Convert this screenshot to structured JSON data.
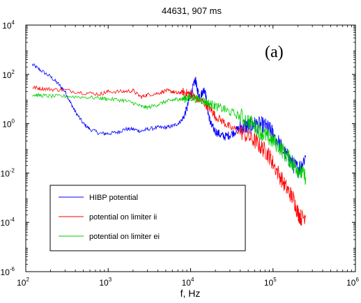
{
  "chart_data": {
    "type": "line",
    "title": "44631, 907 ms",
    "xlabel": "f, Hz",
    "ylabel": "",
    "annotation": "(a)",
    "xscale": "log",
    "yscale": "log",
    "xlim": [
      100,
      1000000
    ],
    "ylim": [
      1e-06,
      10000
    ],
    "x_ticks": [
      {
        "base": "10",
        "exp": "2"
      },
      {
        "base": "10",
        "exp": "3"
      },
      {
        "base": "10",
        "exp": "4"
      },
      {
        "base": "10",
        "exp": "5"
      },
      {
        "base": "10",
        "exp": "6"
      }
    ],
    "y_ticks": [
      {
        "base": "10",
        "exp": "4"
      },
      {
        "base": "10",
        "exp": "2"
      },
      {
        "base": "10",
        "exp": "0"
      },
      {
        "base": "10",
        "exp": "-2"
      },
      {
        "base": "10",
        "exp": "-4"
      },
      {
        "base": "10",
        "exp": "-6"
      }
    ],
    "grid": false,
    "legend_position": "lower-left",
    "series": [
      {
        "name": "HIBP potential",
        "color": "#0000ff",
        "x": [
          120,
          150,
          200,
          250,
          300,
          350,
          400,
          500,
          600,
          800,
          1000,
          1300,
          1600,
          2000,
          2500,
          3000,
          4000,
          5000,
          6000,
          7000,
          8000,
          9000,
          10000,
          11000,
          11500,
          12000,
          13000,
          14000,
          15000,
          16000,
          17000,
          18000,
          20000,
          23000,
          26000,
          30000,
          35000,
          40000,
          45000,
          50000,
          55000,
          60000,
          70000,
          80000,
          90000,
          100000,
          120000,
          140000,
          160000,
          180000,
          200000,
          220000,
          250000
        ],
        "y": [
          250,
          150,
          80,
          40,
          20,
          7,
          3,
          1,
          0.6,
          0.4,
          0.4,
          0.45,
          0.6,
          0.6,
          0.5,
          0.6,
          0.7,
          0.7,
          0.8,
          1.0,
          1.5,
          4,
          15,
          40,
          60,
          25,
          12,
          20,
          25,
          4,
          1.5,
          0.8,
          0.5,
          0.35,
          0.3,
          0.35,
          0.5,
          0.7,
          0.8,
          0.8,
          0.9,
          0.9,
          0.9,
          0.8,
          0.6,
          0.4,
          0.15,
          0.06,
          0.035,
          0.02,
          0.015,
          0.02,
          0.05
        ]
      },
      {
        "name": "potential on limiter ii",
        "color": "#ff0000",
        "x": [
          120,
          150,
          200,
          300,
          500,
          800,
          1000,
          1500,
          2000,
          2500,
          3000,
          4000,
          5000,
          6000,
          7000,
          8000,
          9000,
          10000,
          11000,
          12000,
          14000,
          16000,
          18000,
          20000,
          25000,
          30000,
          40000,
          50000,
          60000,
          70000,
          80000,
          90000,
          100000,
          120000,
          140000,
          160000,
          180000,
          200000,
          220000,
          250000
        ],
        "y": [
          30,
          27,
          25,
          23,
          18,
          16,
          20,
          20,
          22,
          12,
          15,
          17,
          22,
          20,
          17,
          20,
          17,
          16,
          12,
          10,
          8,
          5,
          3.5,
          2,
          1.2,
          0.7,
          0.5,
          0.3,
          0.2,
          0.12,
          0.08,
          0.05,
          0.025,
          0.008,
          0.003,
          0.0015,
          0.0008,
          0.00025,
          0.00015,
          0.0002
        ]
      },
      {
        "name": "potential on limiter ei",
        "color": "#00cc00",
        "x": [
          120,
          150,
          200,
          300,
          500,
          800,
          1000,
          1500,
          2000,
          2500,
          3000,
          4000,
          5000,
          6000,
          7000,
          8000,
          9000,
          10000,
          12000,
          14000,
          16000,
          18000,
          20000,
          25000,
          30000,
          40000,
          50000,
          60000,
          70000,
          80000,
          90000,
          100000,
          120000,
          140000,
          160000,
          180000,
          200000,
          220000,
          250000
        ],
        "y": [
          15,
          14,
          13,
          13,
          12,
          11,
          10,
          9,
          7,
          5,
          4.5,
          6,
          8,
          9,
          10,
          10,
          11,
          12,
          10,
          9,
          7,
          6,
          5,
          4,
          3,
          2,
          1.3,
          0.8,
          0.5,
          0.35,
          0.25,
          0.2,
          0.12,
          0.06,
          0.035,
          0.02,
          0.015,
          0.01,
          0.007
        ]
      }
    ]
  }
}
